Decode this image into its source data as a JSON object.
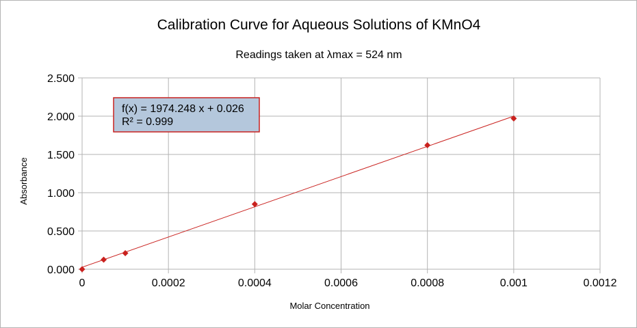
{
  "chart_data": {
    "type": "scatter",
    "title": "Calibration Curve for Aqueous Solutions of KMnO4",
    "subtitle": "Readings taken at λmax = 524 nm",
    "xlabel": "Molar Concentration",
    "ylabel": "Absorbance",
    "xlim": [
      0,
      0.0012
    ],
    "ylim": [
      0,
      2.5
    ],
    "xticks": [
      0,
      0.0002,
      0.0004,
      0.0006,
      0.0008,
      0.001,
      0.0012
    ],
    "xtick_labels": [
      "0",
      "0.0002",
      "0.0004",
      "0.0006",
      "0.0008",
      "0.001",
      "0.0012"
    ],
    "yticks": [
      0,
      0.5,
      1.0,
      1.5,
      2.0,
      2.5
    ],
    "ytick_labels": [
      "0.000",
      "0.500",
      "1.000",
      "1.500",
      "2.000",
      "2.500"
    ],
    "grid": true,
    "series": [
      {
        "x": [
          0,
          5e-05,
          0.0001,
          0.0004,
          0.0008,
          0.001
        ],
        "y": [
          0.0,
          0.125,
          0.21,
          0.85,
          1.62,
          1.97
        ]
      }
    ],
    "trendline": {
      "slope": 1974.248,
      "intercept": 0.026,
      "x_range": [
        0,
        0.001
      ]
    },
    "equation_lines": [
      "f(x) = 1974.248 x + 0.026",
      "R² = 0.999"
    ],
    "colors": {
      "marker": "#c9211e",
      "trendline": "#c9211e",
      "grid": "#b3b3b3",
      "equation_box_fill": "#b4c7dc",
      "equation_box_border": "#c9211e"
    }
  }
}
